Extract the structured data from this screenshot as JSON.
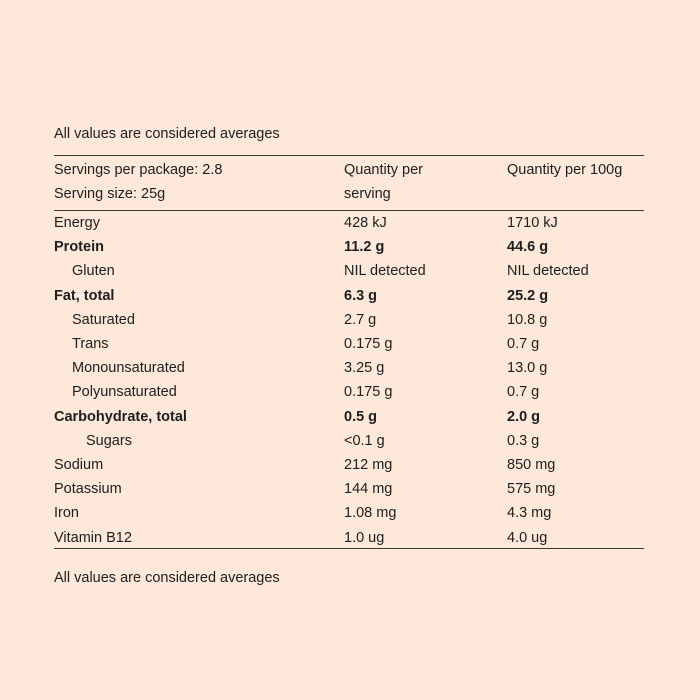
{
  "caption_top": "All values are considered averages",
  "caption_bottom": "All values are considered averages",
  "header": {
    "servings_per_package": "Servings per package: 2.8",
    "serving_size": "Serving size: 25g",
    "col_per_serving_line1": "Quantity per",
    "col_per_serving_line2": "serving",
    "col_per_100g": "Quantity per 100g"
  },
  "rows": [
    {
      "label": "Energy",
      "per_serving": "428 kJ",
      "per_100g": "1710 kJ",
      "bold": false,
      "indent": 0
    },
    {
      "label": "Protein",
      "per_serving": "11.2 g",
      "per_100g": "44.6 g",
      "bold": true,
      "indent": 0
    },
    {
      "label": "Gluten",
      "per_serving": "NIL detected",
      "per_100g": "NIL detected",
      "bold": false,
      "indent": 1
    },
    {
      "label": "Fat, total",
      "per_serving": "6.3 g",
      "per_100g": "25.2 g",
      "bold": true,
      "indent": 0
    },
    {
      "label": "Saturated",
      "per_serving": "2.7 g",
      "per_100g": "10.8 g",
      "bold": false,
      "indent": 1
    },
    {
      "label": "Trans",
      "per_serving": "0.175 g",
      "per_100g": "0.7 g",
      "bold": false,
      "indent": 1
    },
    {
      "label": "Monounsaturated",
      "per_serving": "3.25 g",
      "per_100g": "13.0 g",
      "bold": false,
      "indent": 1
    },
    {
      "label": "Polyunsaturated",
      "per_serving": "0.175 g",
      "per_100g": "0.7 g",
      "bold": false,
      "indent": 1
    },
    {
      "label": "Carbohydrate, total",
      "per_serving": "0.5 g",
      "per_100g": "2.0 g",
      "bold": true,
      "indent": 0
    },
    {
      "label": "Sugars",
      "per_serving": "<0.1 g",
      "per_100g": "0.3 g",
      "bold": false,
      "indent": 2
    },
    {
      "label": "Sodium",
      "per_serving": "212 mg",
      "per_100g": "850 mg",
      "bold": false,
      "indent": 0
    },
    {
      "label": "Potassium",
      "per_serving": "144 mg",
      "per_100g": "575 mg",
      "bold": false,
      "indent": 0
    },
    {
      "label": "Iron",
      "per_serving": "1.08 mg",
      "per_100g": "4.3 mg",
      "bold": false,
      "indent": 0
    },
    {
      "label": "Vitamin B12",
      "per_serving": "1.0 ug",
      "per_100g": "4.0 ug",
      "bold": false,
      "indent": 0
    }
  ]
}
